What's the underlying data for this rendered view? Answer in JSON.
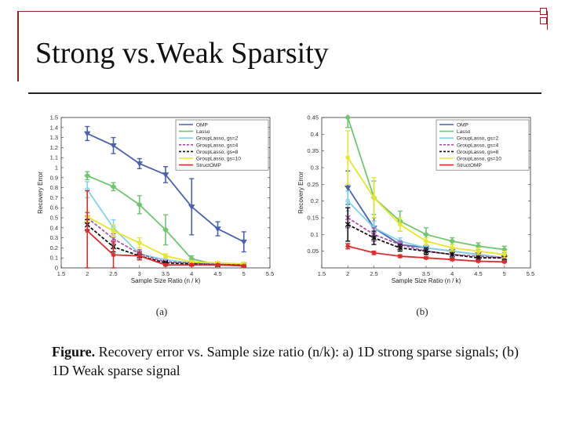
{
  "slide": {
    "title": "Strong vs.Weak Sparsity",
    "caption_bold": "Figure.",
    "caption_text": " Recovery error vs. Sample size ratio (n/k): a) 1D strong sparse signals; (b) 1D Weak sparse signal"
  },
  "colors": {
    "frame": "#9a1f1f",
    "OMP": "#4a62ad",
    "Lasso": "#6fc66f",
    "GroupLasso_gs2": "#7fd3e6",
    "GroupLasso_gs4": "#b14fb1",
    "GroupLasso_gs8": "#111111",
    "GroupLasso_gs10": "#e6e62a",
    "StructOMP": "#dd2b2b"
  },
  "chart_data": [
    {
      "type": "line",
      "panel_label": "(a)",
      "xlabel": "Sample Size Ratio (n / k)",
      "ylabel": "Recovery Error",
      "xlim": [
        1.5,
        5.5
      ],
      "ylim": [
        0,
        1.5
      ],
      "xticks": [
        "1.5",
        "2",
        "2.5",
        "3",
        "3.5",
        "4",
        "4.5",
        "5",
        "5.5"
      ],
      "yticks": [
        "0",
        "0.1",
        "0.2",
        "0.3",
        "0.4",
        "0.5",
        "0.6",
        "0.7",
        "0.8",
        "0.9",
        "1",
        "1.1",
        "1.2",
        "1.3",
        "1.4",
        "1.5"
      ],
      "grid": false,
      "legend_position": "top-right",
      "x": [
        2,
        2.5,
        3,
        3.5,
        4,
        4.5,
        5
      ],
      "series": [
        {
          "name": "OMP",
          "color_key": "OMP",
          "marker": "triangle-down",
          "dash": false,
          "values": [
            1.34,
            1.22,
            1.04,
            0.93,
            0.61,
            0.39,
            0.26
          ],
          "errors": [
            0.07,
            0.08,
            0.05,
            0.08,
            0.28,
            0.07,
            0.1
          ]
        },
        {
          "name": "Lasso",
          "color_key": "Lasso",
          "marker": "diamond",
          "dash": false,
          "values": [
            0.92,
            0.81,
            0.63,
            0.38,
            0.09,
            0.03,
            0.02
          ],
          "errors": [
            0.04,
            0.04,
            0.09,
            0.15,
            0.03,
            0.01,
            0.01
          ]
        },
        {
          "name": "GroupLasso, gs=2",
          "color_key": "GroupLasso_gs2",
          "marker": "circle",
          "dash": false,
          "values": [
            0.78,
            0.4,
            0.14,
            0.08,
            0.05,
            0.04,
            0.04
          ],
          "errors": [
            0.08,
            0.08,
            0.04,
            0.02,
            0.01,
            0.01,
            0.01
          ]
        },
        {
          "name": "GroupLasso, gs=4",
          "color_key": "GroupLasso_gs4",
          "marker": "x",
          "dash": true,
          "values": [
            0.5,
            0.29,
            0.14,
            0.06,
            0.05,
            0.04,
            0.03
          ],
          "errors": [
            0.05,
            0.05,
            0.04,
            0.01,
            0.01,
            0.01,
            0.01
          ]
        },
        {
          "name": "GroupLasso, gs=8",
          "color_key": "GroupLasso_gs8",
          "marker": "x",
          "dash": true,
          "values": [
            0.43,
            0.21,
            0.12,
            0.05,
            0.04,
            0.03,
            0.03
          ],
          "errors": [
            0.05,
            0.05,
            0.04,
            0.01,
            0.01,
            0.01,
            0.01
          ]
        },
        {
          "name": "GroupLasso, gs=10",
          "color_key": "GroupLasso_gs10",
          "marker": "star",
          "dash": false,
          "values": [
            0.51,
            0.37,
            0.25,
            0.12,
            0.06,
            0.05,
            0.04
          ],
          "errors": [
            0.05,
            0.06,
            0.05,
            0.02,
            0.01,
            0.01,
            0.01
          ]
        },
        {
          "name": "StructOMP",
          "color_key": "StructOMP",
          "marker": "star",
          "dash": false,
          "values": [
            0.37,
            0.13,
            0.12,
            0.03,
            0.03,
            0.03,
            0.02
          ],
          "errors": [
            0.4,
            0.13,
            0.04,
            0.01,
            0.01,
            0.01,
            0.01
          ]
        }
      ]
    },
    {
      "type": "line",
      "panel_label": "(b)",
      "xlabel": "Sample Size Ratio (n / k)",
      "ylabel": "Recovery Error",
      "xlim": [
        1.5,
        5.5
      ],
      "ylim": [
        0,
        0.45
      ],
      "xticks": [
        "1.5",
        "2",
        "2.5",
        "3",
        "3.5",
        "4",
        "4.5",
        "5",
        "5.5"
      ],
      "yticks": [
        "0.05",
        "0.1",
        "0.15",
        "0.2",
        "0.25",
        "0.3",
        "0.35",
        "0.4",
        "0.45"
      ],
      "grid": false,
      "legend_position": "top-right",
      "x": [
        2,
        2.5,
        3,
        3.5,
        4,
        4.5,
        5
      ],
      "series": [
        {
          "name": "OMP",
          "color_key": "OMP",
          "marker": "triangle-down",
          "dash": false,
          "values": [
            0.24,
            0.12,
            0.07,
            0.06,
            0.05,
            0.04,
            0.03
          ],
          "errors": [
            0.05,
            0.03,
            0.01,
            0.01,
            0.01,
            0.01,
            0.01
          ]
        },
        {
          "name": "Lasso",
          "color_key": "Lasso",
          "marker": "diamond",
          "dash": false,
          "values": [
            0.45,
            0.21,
            0.14,
            0.1,
            0.08,
            0.065,
            0.055
          ],
          "errors": [
            0.03,
            0.05,
            0.03,
            0.02,
            0.01,
            0.01,
            0.01
          ]
        },
        {
          "name": "GroupLasso, gs=2",
          "color_key": "GroupLasso_gs2",
          "marker": "circle",
          "dash": false,
          "values": [
            0.2,
            0.12,
            0.08,
            0.06,
            0.05,
            0.04,
            0.03
          ],
          "errors": [
            0.03,
            0.02,
            0.01,
            0.01,
            0.01,
            0.01,
            0.01
          ]
        },
        {
          "name": "GroupLasso, gs=4",
          "color_key": "GroupLasso_gs4",
          "marker": "x",
          "dash": true,
          "values": [
            0.15,
            0.1,
            0.07,
            0.05,
            0.04,
            0.035,
            0.03
          ],
          "errors": [
            0.03,
            0.02,
            0.01,
            0.01,
            0.01,
            0.01,
            0.01
          ]
        },
        {
          "name": "GroupLasso, gs=8",
          "color_key": "GroupLasso_gs8",
          "marker": "x",
          "dash": true,
          "values": [
            0.13,
            0.09,
            0.06,
            0.05,
            0.04,
            0.03,
            0.03
          ],
          "errors": [
            0.05,
            0.02,
            0.01,
            0.01,
            0.01,
            0.01,
            0.01
          ]
        },
        {
          "name": "GroupLasso, gs=10",
          "color_key": "GroupLasso_gs10",
          "marker": "star",
          "dash": false,
          "values": [
            0.33,
            0.21,
            0.13,
            0.08,
            0.06,
            0.05,
            0.04
          ],
          "errors": [
            0.08,
            0.06,
            0.02,
            0.01,
            0.01,
            0.01,
            0.01
          ]
        },
        {
          "name": "StructOMP",
          "color_key": "StructOMP",
          "marker": "star",
          "dash": false,
          "values": [
            0.065,
            0.045,
            0.035,
            0.03,
            0.025,
            0.02,
            0.018
          ],
          "errors": [
            0.008,
            0.005,
            0.004,
            0.003,
            0.003,
            0.002,
            0.002
          ]
        }
      ]
    }
  ]
}
